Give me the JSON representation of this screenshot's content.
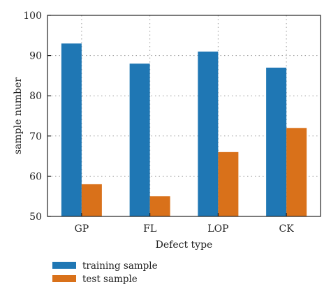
{
  "chart_data": {
    "type": "bar",
    "categories": [
      "GP",
      "FL",
      "LOP",
      "CK"
    ],
    "series": [
      {
        "name": "training sample",
        "values": [
          93,
          88,
          91,
          87
        ],
        "color": "#1f77b4"
      },
      {
        "name": "test sample",
        "values": [
          58,
          55,
          66,
          72
        ],
        "color": "#d9711a"
      }
    ],
    "xlabel": "Defect type",
    "ylabel": "sample number",
    "ylim": [
      50,
      100
    ],
    "yticks": [
      50,
      60,
      70,
      80,
      90,
      100
    ],
    "grid": true,
    "grid_style": "dotted",
    "legend_position": "below"
  }
}
